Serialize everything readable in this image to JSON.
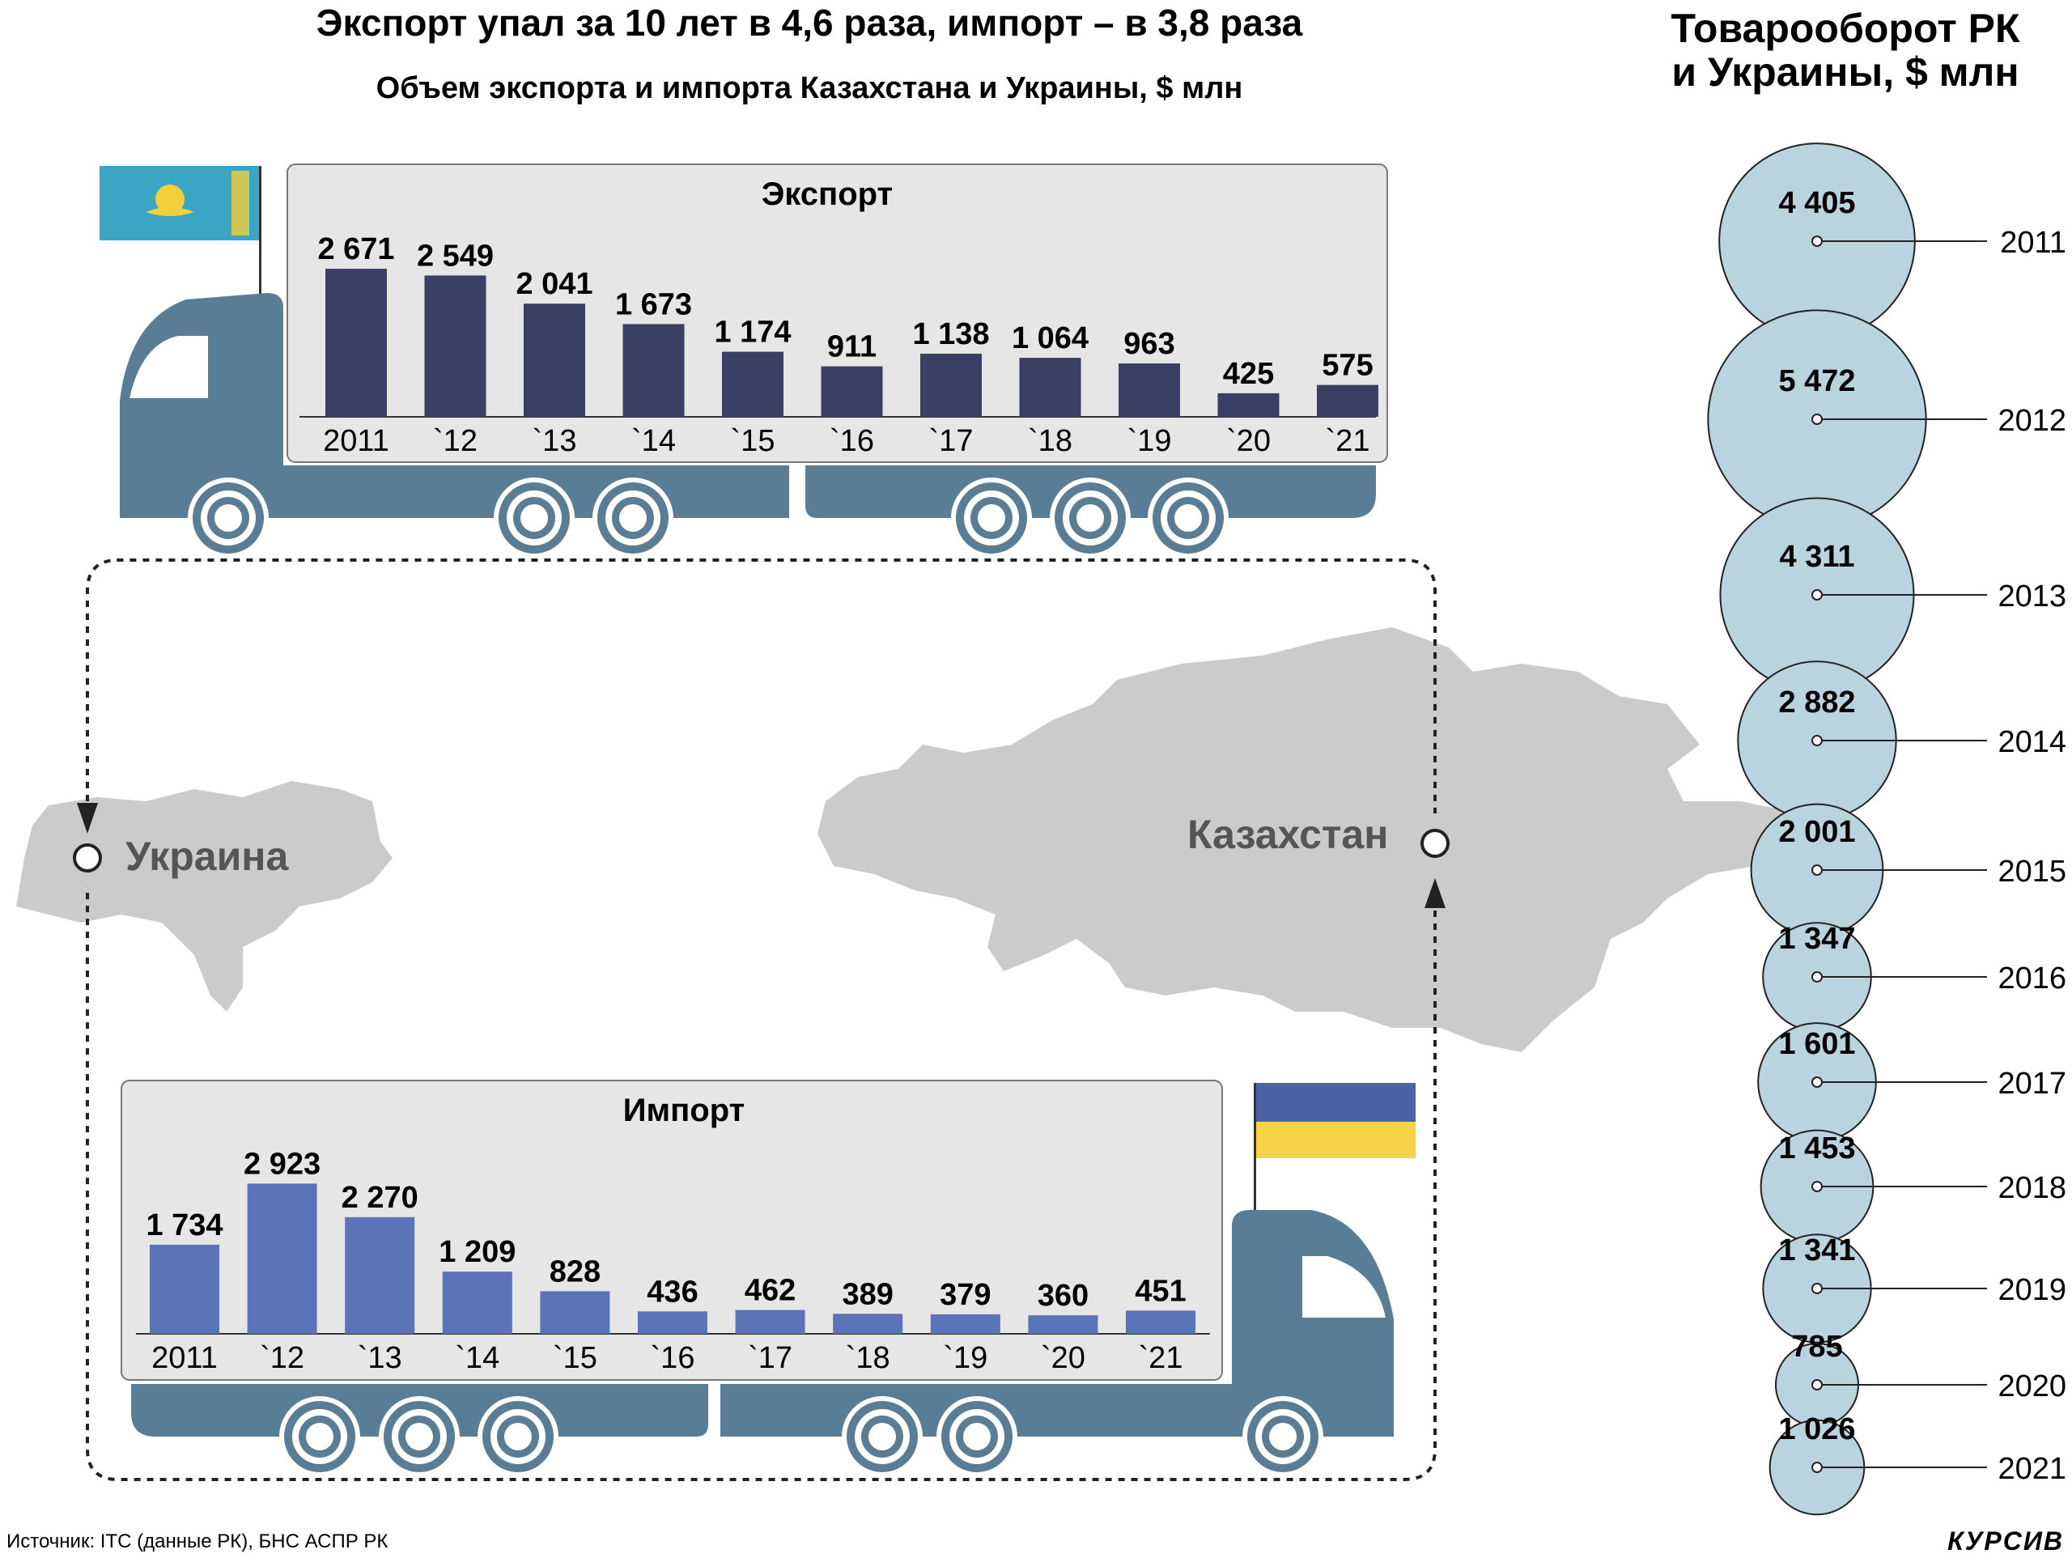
{
  "header": {
    "title": "Экспорт упал за 10 лет в 4,6 раза, импорт – в 3,8 раза",
    "subtitle": "Объем экспорта и импорта Казахстана и Украины, $ млн"
  },
  "turnover_title": {
    "line1": "Товарооборот РК",
    "line2": "и Украины, $ млн"
  },
  "map": {
    "ukraine_label": "Украина",
    "kazakhstan_label": "Казахстан"
  },
  "footer": {
    "source": "Источник: ITC (данные РК), БНС АСПР РК",
    "brand": "КУРСИВ"
  },
  "colors": {
    "truck": "#5a7d96",
    "export_bar": "#3a3f63",
    "import_bar": "#5b74b8",
    "cargo_bg": "#e6e6e6",
    "bubble": "#b9d4de",
    "map": "#cbcbcb",
    "kz_flag": "#3aa6c4",
    "kz_sun": "#f2d03b",
    "ua_blue": "#4b63a6",
    "ua_yellow": "#f7d148"
  },
  "chart_data": [
    {
      "type": "bar",
      "title": "Экспорт",
      "categories": [
        "2011",
        "`12",
        "`13",
        "`14",
        "`15",
        "`16",
        "`17",
        "`18",
        "`19",
        "`20",
        "`21"
      ],
      "values": [
        2671,
        2549,
        2041,
        1673,
        1174,
        911,
        1138,
        1064,
        963,
        425,
        575
      ],
      "labels": [
        "2 671",
        "2 549",
        "2 041",
        "1 673",
        "1 174",
        "911",
        "1 138",
        "1 064",
        "963",
        "425",
        "575"
      ]
    },
    {
      "type": "bar",
      "title": "Импорт",
      "categories": [
        "2011",
        "`12",
        "`13",
        "`14",
        "`15",
        "`16",
        "`17",
        "`18",
        "`19",
        "`20",
        "`21"
      ],
      "values": [
        1734,
        2923,
        2270,
        1209,
        828,
        436,
        462,
        389,
        379,
        360,
        451
      ],
      "labels": [
        "1 734",
        "2 923",
        "2 270",
        "1 209",
        "828",
        "436",
        "462",
        "389",
        "379",
        "360",
        "451"
      ]
    },
    {
      "type": "bubble",
      "title": "Товарооборот РК и Украины, $ млн",
      "years": [
        "2011",
        "2012",
        "2013",
        "2014",
        "2015",
        "2016",
        "2017",
        "2018",
        "2019",
        "2020",
        "2021"
      ],
      "values": [
        4405,
        5472,
        4311,
        2882,
        2001,
        1347,
        1601,
        1453,
        1341,
        785,
        1026
      ],
      "labels": [
        "4 405",
        "5 472",
        "4 311",
        "2 882",
        "2 001",
        "1 347",
        "1 601",
        "1 453",
        "1 341",
        "785",
        "1 026"
      ]
    }
  ]
}
